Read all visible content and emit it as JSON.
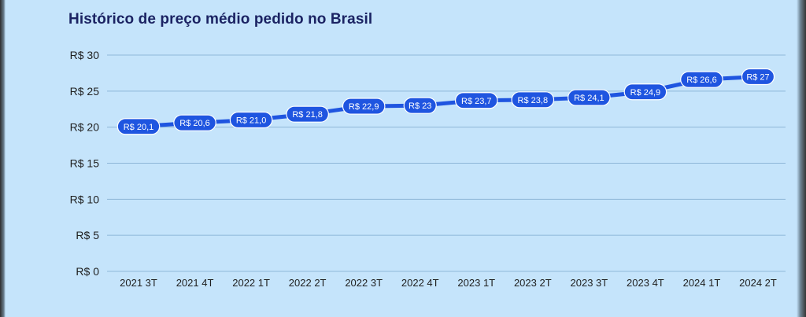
{
  "chart_data": {
    "type": "line",
    "title": "Histórico de preço médio pedido no Brasil",
    "categories": [
      "2021 3T",
      "2021 4T",
      "2022 1T",
      "2022 2T",
      "2022 3T",
      "2022 4T",
      "2023 1T",
      "2023 2T",
      "2023 3T",
      "2023 4T",
      "2024 1T",
      "2024 2T"
    ],
    "series": [
      {
        "values": [
          20.1,
          20.6,
          21.0,
          21.8,
          22.9,
          23,
          23.7,
          23.8,
          24.1,
          24.9,
          26.6,
          27
        ],
        "labels": [
          "R$ 20,1",
          "R$ 20,6",
          "R$ 21,0",
          "R$ 21,8",
          "R$ 22,9",
          "R$ 23",
          "R$ 23,7",
          "R$ 23,8",
          "R$ 24,1",
          "R$ 24,9",
          "R$ 26,6",
          "R$ 27"
        ]
      }
    ],
    "y_ticks": [
      "R$ 0",
      "R$ 5",
      "R$ 10",
      "R$ 15",
      "R$ 20",
      "R$ 25",
      "R$ 30"
    ],
    "ylim": [
      0,
      30
    ],
    "grid": true,
    "colors": {
      "line": "#1f55e0",
      "label_bg": "#1f55e0",
      "background": "#c5e4fb",
      "grid": "#8eb7d8",
      "title": "#1b2363"
    }
  }
}
